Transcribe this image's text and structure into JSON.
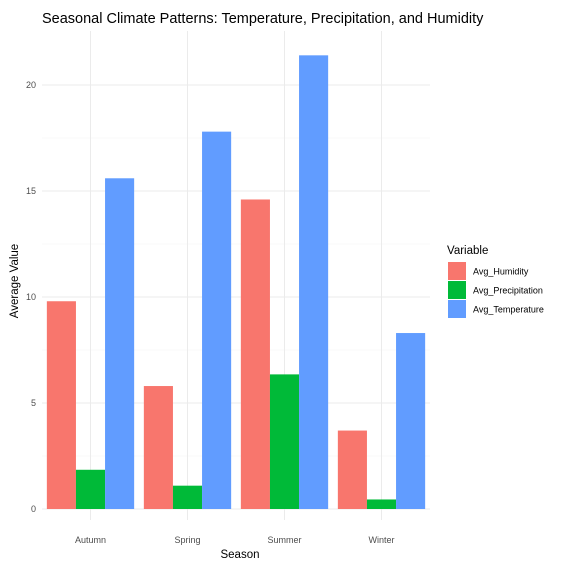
{
  "chart_data": {
    "type": "bar",
    "title": "Seasonal Climate Patterns: Temperature, Precipitation, and Humidity",
    "xlabel": "Season",
    "ylabel": "Average Value",
    "categories": [
      "Autumn",
      "Spring",
      "Summer",
      "Winter"
    ],
    "series": [
      {
        "name": "Avg_Humidity",
        "color": "#F8766D",
        "values": [
          9.8,
          5.8,
          14.6,
          3.7
        ]
      },
      {
        "name": "Avg_Precipitation",
        "color": "#00BA38",
        "values": [
          1.85,
          1.1,
          6.35,
          0.45
        ]
      },
      {
        "name": "Avg_Temperature",
        "color": "#619CFF",
        "values": [
          15.6,
          17.8,
          21.4,
          8.3
        ]
      }
    ],
    "yticks": [
      0,
      5,
      10,
      15,
      20
    ],
    "ylim": [
      0,
      22.5
    ],
    "grid": true,
    "legend": {
      "title": "Variable",
      "position": "right"
    }
  }
}
